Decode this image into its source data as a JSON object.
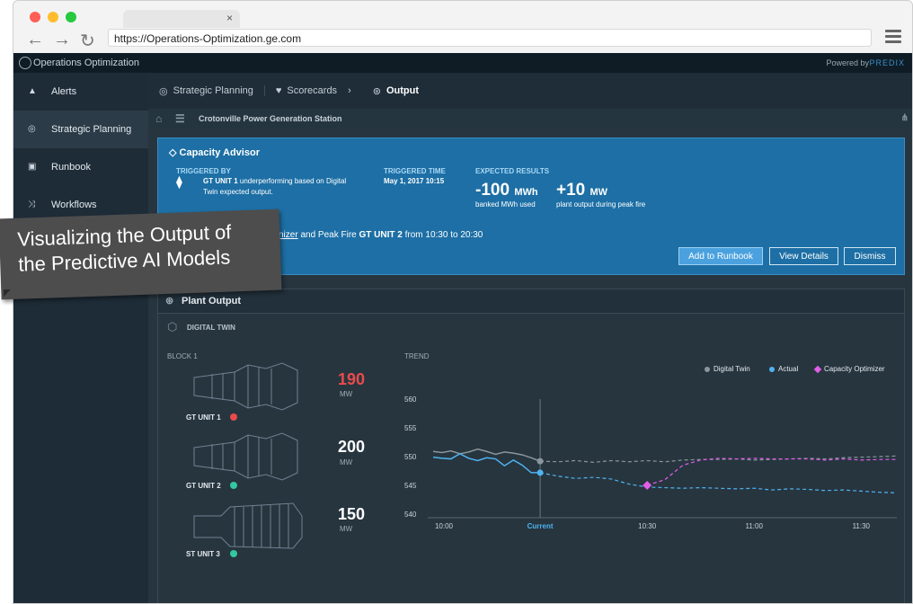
{
  "browser": {
    "url": "https://Operations-Optimization.ge.com",
    "tab_close": "×",
    "colors": {
      "red": "#ff5f56",
      "yellow": "#ffbd2e",
      "green": "#27c93f"
    }
  },
  "app": {
    "title": "Operations Optimization",
    "powered_by": "Powered by",
    "predix": "PREDIX"
  },
  "sidebar": {
    "items": [
      {
        "label": "Alerts",
        "icon": "alert-icon"
      },
      {
        "label": "Strategic Planning",
        "icon": "target-icon"
      },
      {
        "label": "Runbook",
        "icon": "book-icon"
      },
      {
        "label": "Workflows",
        "icon": "shuffle-icon"
      }
    ]
  },
  "breadcrumb": {
    "item1": "Strategic Planning",
    "item2": "Scorecards",
    "item3": "Output",
    "sep": "›"
  },
  "station": {
    "name": "Crotonville Power Generation Station"
  },
  "advisor": {
    "title": "Capacity Advisor",
    "triggered_by_label": "TRIGGERED BY",
    "triggered_by_unit": "GT UNIT 1",
    "triggered_by_text": " underperforming based on Digital",
    "triggered_by_text2": "Twin expected output.",
    "triggered_time_label": "TRIGGERED TIME",
    "triggered_time": "May 1, 2017 10:15",
    "expected_label": "EXPECTED RESULTS",
    "result1_value": "-100",
    "result1_unit": "MWh",
    "result1_desc": "banked MWh used",
    "result2_value": "+10",
    "result2_unit": "MW",
    "result2_desc": "plant output during peak fire",
    "action_link": "nizer",
    "action_pre": " and Peak Fire ",
    "action_unit": "GT UNIT 2",
    "action_post": " from 10:30 to 20:30",
    "buttons": {
      "add": "Add to Runbook",
      "details": "View Details",
      "dismiss": "Dismiss"
    }
  },
  "plant": {
    "title": "Plant Output",
    "digital_twin": "DIGITAL TWIN",
    "block": "BLOCK 1",
    "trend": "TREND",
    "units": [
      {
        "name": "GT UNIT 1",
        "value": "190",
        "unit": "MW",
        "color": "#e94b4b",
        "status": "#e94b4b"
      },
      {
        "name": "GT UNIT 2",
        "value": "200",
        "unit": "MW",
        "color": "#ffffff",
        "status": "#33c8a0"
      },
      {
        "name": "ST UNIT 3",
        "value": "150",
        "unit": "MW",
        "color": "#ffffff",
        "status": "#33c8a0"
      }
    ],
    "legend": {
      "digital_twin": "Digital Twin",
      "actual": "Actual",
      "capacity": "Capacity Optimizer"
    }
  },
  "chart_data": {
    "type": "line",
    "y_ticks": [
      560,
      555,
      550,
      545,
      540
    ],
    "x_labels": [
      "10:00",
      "Current",
      "10:30",
      "11:00",
      "11:30"
    ],
    "ylim": [
      540,
      560
    ],
    "colors": {
      "digital_twin": "#8a959c",
      "actual": "#4fb3ef",
      "capacity": "#e25ee8"
    },
    "series": [
      {
        "name": "Digital Twin",
        "x": [
          0,
          0.1,
          0.2,
          0.3,
          0.4,
          0.5,
          0.6,
          0.7,
          0.8,
          0.9,
          1.0,
          1.1,
          1.2,
          1.4,
          1.6,
          1.8,
          2.0,
          2.2,
          2.4,
          2.6,
          2.8,
          3.0,
          3.2,
          3.4,
          3.6,
          3.8,
          4.0,
          4.2,
          4.4,
          4.6,
          4.8,
          5.0,
          5.2
        ],
        "y": [
          550.9,
          550.7,
          551.0,
          550.5,
          550.8,
          551.3,
          550.9,
          550.4,
          550.8,
          550.6,
          550.3,
          549.8,
          549.2,
          549.1,
          549.3,
          549.0,
          549.3,
          549.1,
          549.3,
          549.1,
          549.4,
          549.5,
          549.5,
          549.6,
          549.4,
          549.5,
          549.6,
          549.7,
          549.6,
          549.8,
          549.9,
          550.0,
          550.1
        ]
      },
      {
        "name": "Actual",
        "x": [
          0,
          0.1,
          0.2,
          0.3,
          0.4,
          0.5,
          0.6,
          0.7,
          0.8,
          0.9,
          1.0,
          1.1,
          1.2,
          1.4,
          1.6,
          1.8,
          2.0,
          2.2,
          2.4,
          2.6,
          2.8,
          3.0,
          3.2,
          3.4,
          3.6,
          3.8,
          4.0,
          4.2,
          4.4,
          4.6,
          4.8,
          5.0,
          5.2
        ],
        "y": [
          549.9,
          549.7,
          549.6,
          550.5,
          549.7,
          549.3,
          549.8,
          549.6,
          548.4,
          549.4,
          548.5,
          547.2,
          547.2,
          546.6,
          546.2,
          546.4,
          546.1,
          545.2,
          544.7,
          544.6,
          544.5,
          544.6,
          544.5,
          544.4,
          544.5,
          544.2,
          544.4,
          544.3,
          544.1,
          544.2,
          544.0,
          543.8,
          543.7
        ]
      },
      {
        "name": "Capacity Optimizer",
        "x": [
          2.4,
          2.6,
          2.8,
          3.0,
          3.2,
          3.4,
          3.6,
          3.8,
          4.0,
          4.2,
          4.4,
          4.6,
          4.8,
          5.0,
          5.2
        ],
        "y": [
          545.0,
          546.0,
          548.5,
          549.4,
          549.7,
          549.6,
          549.7,
          549.6,
          549.6,
          549.6,
          549.4,
          549.6,
          549.4,
          549.5,
          549.5
        ]
      }
    ],
    "markers": [
      {
        "series": "Capacity Optimizer",
        "x": 2.4,
        "y": 545.0
      },
      {
        "series": "Digital Twin",
        "x": 1.2,
        "y": 549.2
      },
      {
        "series": "Actual",
        "x": 1.2,
        "y": 547.2
      }
    ],
    "current_x": 1.2
  },
  "callout": {
    "text": "Visualizing the Output of the Predictive AI Models"
  }
}
